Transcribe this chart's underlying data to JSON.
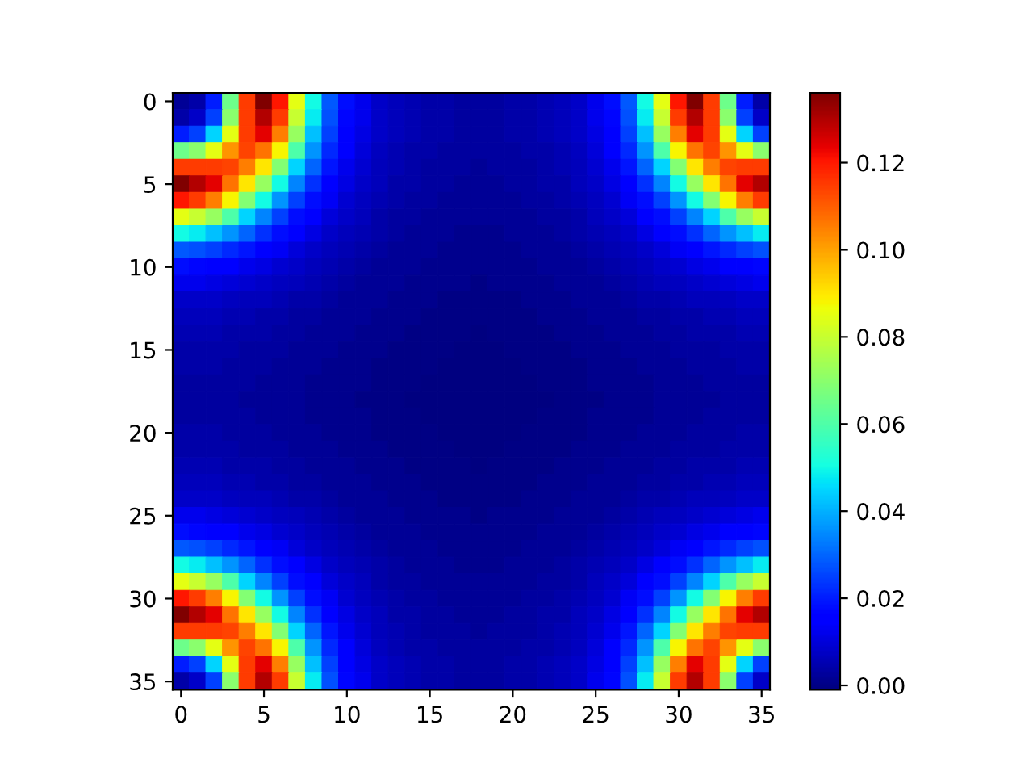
{
  "chart_data": {
    "type": "heatmap",
    "categories": [
      "0",
      null,
      null,
      null,
      null,
      "5",
      null,
      null,
      null,
      null,
      "10",
      null,
      null,
      null,
      null,
      "15",
      null,
      null,
      null,
      null,
      "20",
      null,
      null,
      null,
      null,
      "25",
      null,
      null,
      null,
      null,
      "30",
      null,
      null,
      null,
      null,
      "35"
    ],
    "y_categories": [
      "0",
      null,
      null,
      null,
      null,
      "5",
      null,
      null,
      null,
      null,
      "10",
      null,
      null,
      null,
      null,
      "15",
      null,
      null,
      null,
      null,
      "20",
      null,
      null,
      null,
      null,
      "25",
      null,
      null,
      null,
      null,
      "30",
      null,
      null,
      null,
      null,
      "35"
    ],
    "clim": [
      -0.001,
      0.136
    ],
    "cticks": [
      {
        "value": 0,
        "label": "0.00"
      },
      {
        "value": 0.02,
        "label": "0.02"
      },
      {
        "value": 0.04,
        "label": "0.04"
      },
      {
        "value": 0.06,
        "label": "0.06"
      },
      {
        "value": 0.08,
        "label": "0.08"
      },
      {
        "value": 0.1,
        "label": "0.10"
      },
      {
        "value": 0.12,
        "label": "0.12"
      }
    ],
    "cells": [
      [
        0.002,
        0.004,
        0.02,
        0.065,
        0.115,
        0.136,
        0.12,
        0.085,
        0.05,
        0.028,
        0.018,
        0.012,
        0.008,
        0.006,
        0.005,
        0.004,
        0.004,
        0.003,
        0.003,
        0.003,
        0.004,
        0.004,
        0.005,
        0.006,
        0.008,
        0.012,
        0.018,
        0.028,
        0.05,
        0.085,
        0.12,
        0.136,
        0.115,
        0.065,
        0.02,
        0.004
      ],
      [
        0.004,
        0.008,
        0.025,
        0.07,
        0.115,
        0.13,
        0.115,
        0.08,
        0.048,
        0.027,
        0.017,
        0.012,
        0.008,
        0.006,
        0.005,
        0.004,
        0.004,
        0.003,
        0.003,
        0.003,
        0.004,
        0.004,
        0.005,
        0.006,
        0.008,
        0.012,
        0.017,
        0.027,
        0.048,
        0.08,
        0.115,
        0.13,
        0.115,
        0.07,
        0.025,
        0.008
      ],
      [
        0.02,
        0.025,
        0.045,
        0.085,
        0.115,
        0.124,
        0.105,
        0.072,
        0.042,
        0.025,
        0.016,
        0.011,
        0.008,
        0.006,
        0.005,
        0.004,
        0.004,
        0.003,
        0.003,
        0.003,
        0.004,
        0.004,
        0.005,
        0.006,
        0.008,
        0.011,
        0.016,
        0.025,
        0.042,
        0.072,
        0.105,
        0.124,
        0.115,
        0.085,
        0.045,
        0.025
      ],
      [
        0.065,
        0.07,
        0.085,
        0.102,
        0.114,
        0.107,
        0.088,
        0.06,
        0.036,
        0.022,
        0.014,
        0.01,
        0.007,
        0.005,
        0.004,
        0.004,
        0.003,
        0.003,
        0.003,
        0.003,
        0.003,
        0.004,
        0.004,
        0.005,
        0.007,
        0.01,
        0.014,
        0.022,
        0.036,
        0.06,
        0.088,
        0.107,
        0.114,
        0.102,
        0.085,
        0.07
      ],
      [
        0.115,
        0.115,
        0.115,
        0.114,
        0.105,
        0.09,
        0.069,
        0.045,
        0.03,
        0.019,
        0.012,
        0.009,
        0.006,
        0.005,
        0.004,
        0.003,
        0.003,
        0.003,
        0.002,
        0.003,
        0.003,
        0.003,
        0.004,
        0.005,
        0.006,
        0.009,
        0.012,
        0.019,
        0.03,
        0.045,
        0.069,
        0.09,
        0.105,
        0.114,
        0.115,
        0.115
      ],
      [
        0.136,
        0.13,
        0.124,
        0.107,
        0.09,
        0.072,
        0.05,
        0.034,
        0.023,
        0.016,
        0.011,
        0.008,
        0.006,
        0.004,
        0.004,
        0.003,
        0.003,
        0.002,
        0.002,
        0.002,
        0.003,
        0.003,
        0.004,
        0.004,
        0.006,
        0.008,
        0.011,
        0.016,
        0.023,
        0.034,
        0.05,
        0.072,
        0.09,
        0.107,
        0.124,
        0.13
      ],
      [
        0.12,
        0.115,
        0.105,
        0.088,
        0.069,
        0.05,
        0.036,
        0.025,
        0.018,
        0.013,
        0.009,
        0.007,
        0.005,
        0.004,
        0.003,
        0.003,
        0.002,
        0.002,
        0.002,
        0.002,
        0.002,
        0.003,
        0.003,
        0.004,
        0.005,
        0.007,
        0.009,
        0.013,
        0.018,
        0.025,
        0.036,
        0.05,
        0.069,
        0.088,
        0.105,
        0.115
      ],
      [
        0.085,
        0.08,
        0.072,
        0.06,
        0.045,
        0.034,
        0.025,
        0.018,
        0.014,
        0.01,
        0.008,
        0.006,
        0.004,
        0.003,
        0.003,
        0.002,
        0.002,
        0.002,
        0.002,
        0.002,
        0.002,
        0.002,
        0.003,
        0.003,
        0.004,
        0.006,
        0.008,
        0.01,
        0.014,
        0.018,
        0.025,
        0.034,
        0.045,
        0.06,
        0.072,
        0.08
      ],
      [
        0.05,
        0.048,
        0.042,
        0.036,
        0.03,
        0.023,
        0.018,
        0.014,
        0.011,
        0.008,
        0.006,
        0.005,
        0.004,
        0.003,
        0.002,
        0.002,
        0.002,
        0.001,
        0.001,
        0.001,
        0.002,
        0.002,
        0.002,
        0.003,
        0.004,
        0.005,
        0.006,
        0.008,
        0.011,
        0.014,
        0.018,
        0.023,
        0.03,
        0.036,
        0.042,
        0.048
      ],
      [
        0.028,
        0.027,
        0.025,
        0.022,
        0.019,
        0.016,
        0.013,
        0.01,
        0.008,
        0.006,
        0.005,
        0.004,
        0.003,
        0.002,
        0.002,
        0.002,
        0.001,
        0.001,
        0.001,
        0.001,
        0.001,
        0.002,
        0.002,
        0.002,
        0.003,
        0.004,
        0.005,
        0.006,
        0.008,
        0.01,
        0.013,
        0.016,
        0.019,
        0.022,
        0.025,
        0.027
      ],
      [
        0.018,
        0.017,
        0.016,
        0.014,
        0.012,
        0.011,
        0.009,
        0.008,
        0.006,
        0.005,
        0.004,
        0.003,
        0.002,
        0.002,
        0.002,
        0.001,
        0.001,
        0.001,
        0.001,
        0.001,
        0.001,
        0.001,
        0.002,
        0.002,
        0.002,
        0.003,
        0.004,
        0.005,
        0.006,
        0.008,
        0.009,
        0.011,
        0.012,
        0.014,
        0.016,
        0.017
      ],
      [
        0.012,
        0.012,
        0.011,
        0.01,
        0.009,
        0.008,
        0.007,
        0.006,
        0.005,
        0.004,
        0.003,
        0.002,
        0.002,
        0.002,
        0.001,
        0.001,
        0.001,
        0.001,
        0,
        0.001,
        0.001,
        0.001,
        0.001,
        0.002,
        0.002,
        0.002,
        0.003,
        0.004,
        0.005,
        0.006,
        0.007,
        0.008,
        0.009,
        0.01,
        0.011,
        0.012
      ],
      [
        0.008,
        0.008,
        0.008,
        0.007,
        0.006,
        0.006,
        0.005,
        0.004,
        0.004,
        0.003,
        0.002,
        0.002,
        0.002,
        0.001,
        0.001,
        0.001,
        0,
        0,
        0,
        0,
        0,
        0.001,
        0.001,
        0.001,
        0.002,
        0.002,
        0.002,
        0.003,
        0.004,
        0.004,
        0.005,
        0.006,
        0.006,
        0.007,
        0.008,
        0.008
      ],
      [
        0.006,
        0.006,
        0.006,
        0.005,
        0.005,
        0.004,
        0.004,
        0.003,
        0.003,
        0.002,
        0.002,
        0.002,
        0.001,
        0.001,
        0.001,
        0,
        0,
        0,
        0,
        0,
        0,
        0,
        0.001,
        0.001,
        0.001,
        0.002,
        0.002,
        0.002,
        0.003,
        0.003,
        0.004,
        0.004,
        0.005,
        0.005,
        0.006,
        0.006
      ],
      [
        0.005,
        0.005,
        0.005,
        0.004,
        0.004,
        0.004,
        0.003,
        0.003,
        0.002,
        0.002,
        0.002,
        0.001,
        0.001,
        0.001,
        0,
        0,
        0,
        0,
        -0.001,
        0,
        0,
        0,
        0,
        0.001,
        0.001,
        0.001,
        0.002,
        0.002,
        0.002,
        0.003,
        0.003,
        0.004,
        0.004,
        0.004,
        0.005,
        0.005
      ],
      [
        0.004,
        0.004,
        0.004,
        0.004,
        0.003,
        0.003,
        0.003,
        0.002,
        0.002,
        0.002,
        0.001,
        0.001,
        0.001,
        0,
        0,
        0,
        0,
        -0.001,
        -0.001,
        -0.001,
        0,
        0,
        0,
        0,
        0.001,
        0.001,
        0.001,
        0.002,
        0.002,
        0.002,
        0.003,
        0.003,
        0.003,
        0.004,
        0.004,
        0.004
      ],
      [
        0.004,
        0.004,
        0.004,
        0.003,
        0.003,
        0.003,
        0.002,
        0.002,
        0.002,
        0.001,
        0.001,
        0.001,
        0,
        0,
        0,
        0,
        -0.001,
        -0.001,
        -0.001,
        -0.001,
        -0.001,
        0,
        0,
        0,
        0,
        0.001,
        0.001,
        0.001,
        0.002,
        0.002,
        0.002,
        0.003,
        0.003,
        0.003,
        0.004,
        0.004
      ],
      [
        0.003,
        0.003,
        0.003,
        0.003,
        0.003,
        0.002,
        0.002,
        0.002,
        0.001,
        0.001,
        0.001,
        0.001,
        0,
        0,
        0,
        -0.001,
        -0.001,
        -0.001,
        -0.001,
        -0.001,
        -0.001,
        -0.001,
        0,
        0,
        0,
        0.001,
        0.001,
        0.001,
        0.001,
        0.002,
        0.002,
        0.002,
        0.003,
        0.003,
        0.003,
        0.003
      ],
      [
        0.003,
        0.003,
        0.003,
        0.003,
        0.002,
        0.002,
        0.002,
        0.002,
        0.001,
        0.001,
        0.001,
        0,
        0,
        0,
        -0.001,
        -0.001,
        -0.001,
        -0.001,
        -0.001,
        -0.001,
        -0.001,
        -0.001,
        -0.001,
        0,
        0,
        0,
        0.001,
        0.001,
        0.001,
        0.002,
        0.002,
        0.002,
        0.002,
        0.003,
        0.003,
        0.003
      ],
      [
        0.003,
        0.003,
        0.003,
        0.003,
        0.003,
        0.002,
        0.002,
        0.002,
        0.001,
        0.001,
        0.001,
        0.001,
        0,
        0,
        0,
        -0.001,
        -0.001,
        -0.001,
        -0.001,
        -0.001,
        -0.001,
        -0.001,
        0,
        0,
        0,
        0.001,
        0.001,
        0.001,
        0.001,
        0.002,
        0.002,
        0.002,
        0.003,
        0.003,
        0.003,
        0.003
      ],
      [
        0.004,
        0.004,
        0.004,
        0.003,
        0.003,
        0.003,
        0.002,
        0.002,
        0.002,
        0.001,
        0.001,
        0.001,
        0,
        0,
        0,
        0,
        -0.001,
        -0.001,
        -0.001,
        -0.001,
        -0.001,
        0,
        0,
        0,
        0,
        0.001,
        0.001,
        0.001,
        0.002,
        0.002,
        0.002,
        0.003,
        0.003,
        0.003,
        0.004,
        0.004
      ],
      [
        0.004,
        0.004,
        0.004,
        0.004,
        0.003,
        0.003,
        0.003,
        0.002,
        0.002,
        0.002,
        0.001,
        0.001,
        0.001,
        0,
        0,
        0,
        0,
        -0.001,
        -0.001,
        -0.001,
        0,
        0,
        0,
        0,
        0.001,
        0.001,
        0.001,
        0.002,
        0.002,
        0.002,
        0.003,
        0.003,
        0.003,
        0.004,
        0.004,
        0.004
      ],
      [
        0.005,
        0.005,
        0.005,
        0.004,
        0.004,
        0.004,
        0.003,
        0.003,
        0.002,
        0.002,
        0.002,
        0.001,
        0.001,
        0.001,
        0,
        0,
        0,
        0,
        -0.001,
        0,
        0,
        0,
        0,
        0.001,
        0.001,
        0.001,
        0.002,
        0.002,
        0.002,
        0.003,
        0.003,
        0.004,
        0.004,
        0.004,
        0.005,
        0.005
      ],
      [
        0.006,
        0.006,
        0.006,
        0.005,
        0.005,
        0.004,
        0.004,
        0.003,
        0.003,
        0.002,
        0.002,
        0.002,
        0.001,
        0.001,
        0.001,
        0,
        0,
        0,
        0,
        0,
        0,
        0,
        0.001,
        0.001,
        0.001,
        0.002,
        0.002,
        0.002,
        0.003,
        0.003,
        0.004,
        0.004,
        0.005,
        0.005,
        0.006,
        0.006
      ],
      [
        0.008,
        0.008,
        0.008,
        0.007,
        0.006,
        0.006,
        0.005,
        0.004,
        0.004,
        0.003,
        0.002,
        0.002,
        0.002,
        0.001,
        0.001,
        0.001,
        0,
        0,
        0,
        0,
        0,
        0.001,
        0.001,
        0.001,
        0.002,
        0.002,
        0.002,
        0.003,
        0.004,
        0.004,
        0.005,
        0.006,
        0.006,
        0.007,
        0.008,
        0.008
      ],
      [
        0.012,
        0.012,
        0.011,
        0.01,
        0.009,
        0.008,
        0.007,
        0.006,
        0.005,
        0.004,
        0.003,
        0.002,
        0.002,
        0.002,
        0.001,
        0.001,
        0.001,
        0.001,
        0,
        0.001,
        0.001,
        0.001,
        0.001,
        0.002,
        0.002,
        0.002,
        0.003,
        0.004,
        0.005,
        0.006,
        0.007,
        0.008,
        0.009,
        0.01,
        0.011,
        0.012
      ],
      [
        0.018,
        0.017,
        0.016,
        0.014,
        0.012,
        0.011,
        0.009,
        0.008,
        0.006,
        0.005,
        0.004,
        0.003,
        0.002,
        0.002,
        0.002,
        0.001,
        0.001,
        0.001,
        0.001,
        0.001,
        0.001,
        0.001,
        0.002,
        0.002,
        0.002,
        0.003,
        0.004,
        0.005,
        0.006,
        0.008,
        0.009,
        0.011,
        0.012,
        0.014,
        0.016,
        0.017
      ],
      [
        0.028,
        0.027,
        0.025,
        0.022,
        0.019,
        0.016,
        0.013,
        0.01,
        0.008,
        0.006,
        0.005,
        0.004,
        0.003,
        0.002,
        0.002,
        0.002,
        0.001,
        0.001,
        0.001,
        0.001,
        0.001,
        0.002,
        0.002,
        0.002,
        0.003,
        0.004,
        0.005,
        0.006,
        0.008,
        0.01,
        0.013,
        0.016,
        0.019,
        0.022,
        0.025,
        0.027
      ],
      [
        0.05,
        0.048,
        0.042,
        0.036,
        0.03,
        0.023,
        0.018,
        0.014,
        0.011,
        0.008,
        0.006,
        0.005,
        0.004,
        0.003,
        0.002,
        0.002,
        0.002,
        0.001,
        0.001,
        0.001,
        0.002,
        0.002,
        0.002,
        0.003,
        0.004,
        0.005,
        0.006,
        0.008,
        0.011,
        0.014,
        0.018,
        0.023,
        0.03,
        0.036,
        0.042,
        0.048
      ],
      [
        0.085,
        0.08,
        0.072,
        0.06,
        0.045,
        0.034,
        0.025,
        0.018,
        0.014,
        0.01,
        0.008,
        0.006,
        0.004,
        0.003,
        0.003,
        0.002,
        0.002,
        0.002,
        0.002,
        0.002,
        0.002,
        0.002,
        0.003,
        0.003,
        0.004,
        0.006,
        0.008,
        0.01,
        0.014,
        0.018,
        0.025,
        0.034,
        0.045,
        0.06,
        0.072,
        0.08
      ],
      [
        0.12,
        0.115,
        0.105,
        0.088,
        0.069,
        0.05,
        0.036,
        0.025,
        0.018,
        0.013,
        0.009,
        0.007,
        0.005,
        0.004,
        0.003,
        0.003,
        0.002,
        0.002,
        0.002,
        0.002,
        0.002,
        0.003,
        0.003,
        0.004,
        0.005,
        0.007,
        0.009,
        0.013,
        0.018,
        0.025,
        0.036,
        0.05,
        0.069,
        0.088,
        0.105,
        0.115
      ],
      [
        0.136,
        0.13,
        0.124,
        0.107,
        0.09,
        0.072,
        0.05,
        0.034,
        0.023,
        0.016,
        0.011,
        0.008,
        0.006,
        0.004,
        0.004,
        0.003,
        0.003,
        0.002,
        0.002,
        0.002,
        0.003,
        0.003,
        0.004,
        0.004,
        0.006,
        0.008,
        0.011,
        0.016,
        0.023,
        0.034,
        0.05,
        0.072,
        0.09,
        0.107,
        0.124,
        0.13
      ],
      [
        0.115,
        0.115,
        0.115,
        0.114,
        0.105,
        0.09,
        0.069,
        0.045,
        0.03,
        0.019,
        0.012,
        0.009,
        0.006,
        0.005,
        0.004,
        0.003,
        0.003,
        0.003,
        0.002,
        0.003,
        0.003,
        0.003,
        0.004,
        0.005,
        0.006,
        0.009,
        0.012,
        0.019,
        0.03,
        0.045,
        0.069,
        0.09,
        0.105,
        0.114,
        0.115,
        0.115
      ],
      [
        0.065,
        0.07,
        0.085,
        0.102,
        0.114,
        0.107,
        0.088,
        0.06,
        0.036,
        0.022,
        0.014,
        0.01,
        0.007,
        0.005,
        0.004,
        0.004,
        0.003,
        0.003,
        0.003,
        0.003,
        0.003,
        0.004,
        0.004,
        0.005,
        0.007,
        0.01,
        0.014,
        0.022,
        0.036,
        0.06,
        0.088,
        0.107,
        0.114,
        0.102,
        0.085,
        0.07
      ],
      [
        0.02,
        0.025,
        0.045,
        0.085,
        0.115,
        0.124,
        0.105,
        0.072,
        0.042,
        0.025,
        0.016,
        0.011,
        0.008,
        0.006,
        0.005,
        0.004,
        0.004,
        0.003,
        0.003,
        0.003,
        0.004,
        0.004,
        0.005,
        0.006,
        0.008,
        0.011,
        0.016,
        0.025,
        0.042,
        0.072,
        0.105,
        0.124,
        0.115,
        0.085,
        0.045,
        0.025
      ],
      [
        0.004,
        0.008,
        0.025,
        0.07,
        0.115,
        0.13,
        0.115,
        0.08,
        0.048,
        0.027,
        0.017,
        0.012,
        0.008,
        0.006,
        0.005,
        0.004,
        0.004,
        0.003,
        0.003,
        0.003,
        0.004,
        0.004,
        0.005,
        0.006,
        0.008,
        0.012,
        0.017,
        0.027,
        0.048,
        0.08,
        0.115,
        0.13,
        0.115,
        0.07,
        0.025,
        0.008
      ]
    ]
  }
}
